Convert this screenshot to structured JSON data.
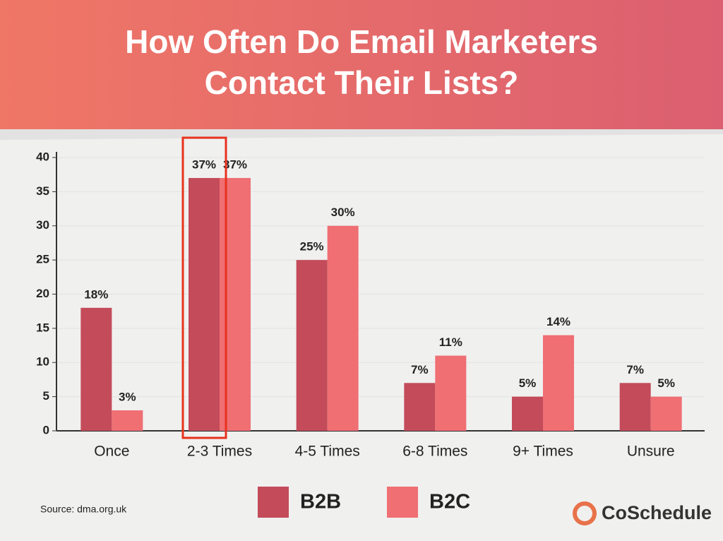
{
  "chart_data": {
    "type": "bar",
    "title": "How Often Do Email Marketers Contact Their Lists?",
    "categories": [
      "Once",
      "2-3 Times",
      "4-5 Times",
      "6-8 Times",
      "9+ Times",
      "Unsure"
    ],
    "series": [
      {
        "name": "B2B",
        "color": "#c44b5a",
        "values": [
          18,
          37,
          25,
          7,
          5,
          7
        ],
        "value_labels": [
          "18%",
          "37%",
          "25%",
          "7%",
          "5%",
          "7%"
        ]
      },
      {
        "name": "B2C",
        "color": "#ef6f73",
        "values": [
          3,
          37,
          30,
          11,
          14,
          5
        ],
        "value_labels": [
          "3%",
          "37%",
          "30%",
          "11%",
          "14%",
          "5%"
        ]
      }
    ],
    "ylim": [
      0,
      40
    ],
    "yticks": [
      0,
      5,
      10,
      15,
      20,
      25,
      30,
      35,
      40
    ],
    "grid": true,
    "legend": "bottom"
  },
  "source": "Source: dma.org.uk",
  "brand": "CoSchedule"
}
